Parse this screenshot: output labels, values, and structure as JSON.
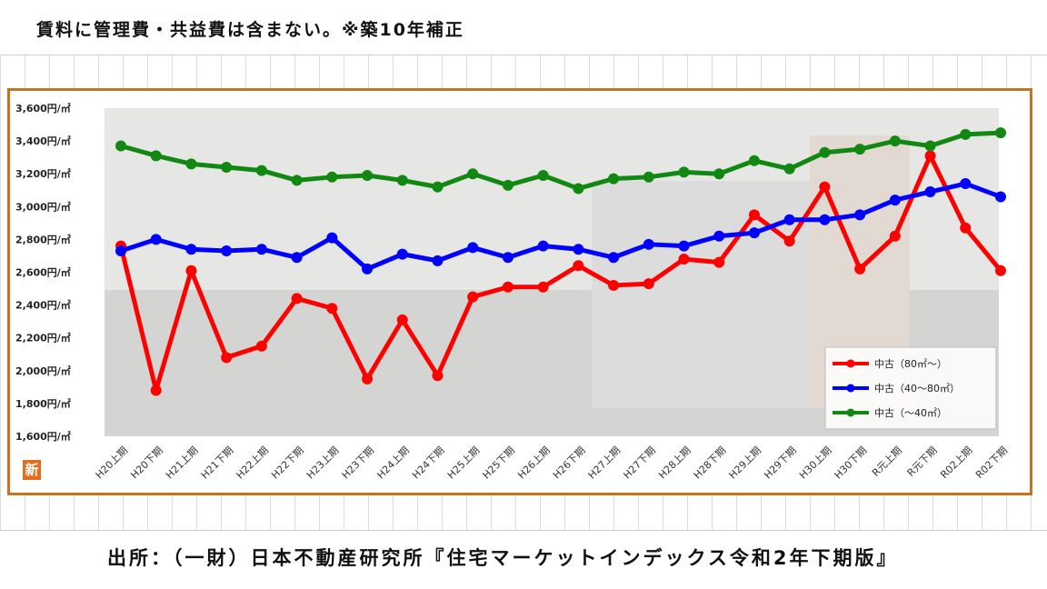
{
  "header": {
    "title": "賃料に管理費・共益費は含まない。※築10年補正"
  },
  "footer": {
    "source": "出所：（一財）日本不動産研究所『住宅マーケットインデックス令和2年下期版』"
  },
  "logo": {
    "text": "新"
  },
  "colors": {
    "frame": "#c8741e",
    "series_red": "#ff0000",
    "series_blue": "#0000ff",
    "series_green": "#118811"
  },
  "chart_data": {
    "type": "line",
    "title": "",
    "xlabel": "",
    "ylabel": "",
    "ylim": [
      1600,
      3600
    ],
    "yticks": [
      1600,
      1800,
      2000,
      2200,
      2400,
      2600,
      2800,
      3000,
      3200,
      3400,
      3600
    ],
    "ytick_labels": [
      "1,600円/㎡",
      "1,800円/㎡",
      "2,000円/㎡",
      "2,200円/㎡",
      "2,400円/㎡",
      "2,600円/㎡",
      "2,800円/㎡",
      "3,000円/㎡",
      "3,200円/㎡",
      "3,400円/㎡",
      "3,600円/㎡"
    ],
    "categories": [
      "H20上期",
      "H20下期",
      "H21上期",
      "H21下期",
      "H22上期",
      "H22下期",
      "H23上期",
      "H23下期",
      "H24上期",
      "H24下期",
      "H25上期",
      "H25下期",
      "H26上期",
      "H26下期",
      "H27上期",
      "H27下期",
      "H28上期",
      "H28下期",
      "H29上期",
      "H29下期",
      "H30上期",
      "H30下期",
      "R元上期",
      "R元下期",
      "R02上期",
      "R02下期"
    ],
    "legend_position": "bottom-right",
    "series": [
      {
        "name": "中古（80㎡～）",
        "color": "#ff0000",
        "values": [
          2760,
          1880,
          2610,
          2080,
          2150,
          2440,
          2380,
          1950,
          2310,
          1970,
          2450,
          2510,
          2510,
          2640,
          2520,
          2530,
          2680,
          2660,
          2950,
          2790,
          3120,
          2620,
          2820,
          3310,
          2870,
          2610
        ]
      },
      {
        "name": "中古（40～80㎡）",
        "color": "#0000ff",
        "values": [
          2730,
          2800,
          2740,
          2730,
          2740,
          2690,
          2810,
          2620,
          2710,
          2670,
          2750,
          2690,
          2760,
          2740,
          2690,
          2770,
          2760,
          2820,
          2840,
          2920,
          2920,
          2950,
          3040,
          3090,
          3140,
          3060
        ]
      },
      {
        "name": "中古（～40㎡）",
        "color": "#118811",
        "values": [
          3370,
          3310,
          3260,
          3240,
          3220,
          3160,
          3180,
          3190,
          3160,
          3120,
          3200,
          3130,
          3190,
          3110,
          3170,
          3180,
          3210,
          3200,
          3280,
          3230,
          3330,
          3350,
          3400,
          3370,
          3440,
          3450
        ]
      }
    ]
  }
}
